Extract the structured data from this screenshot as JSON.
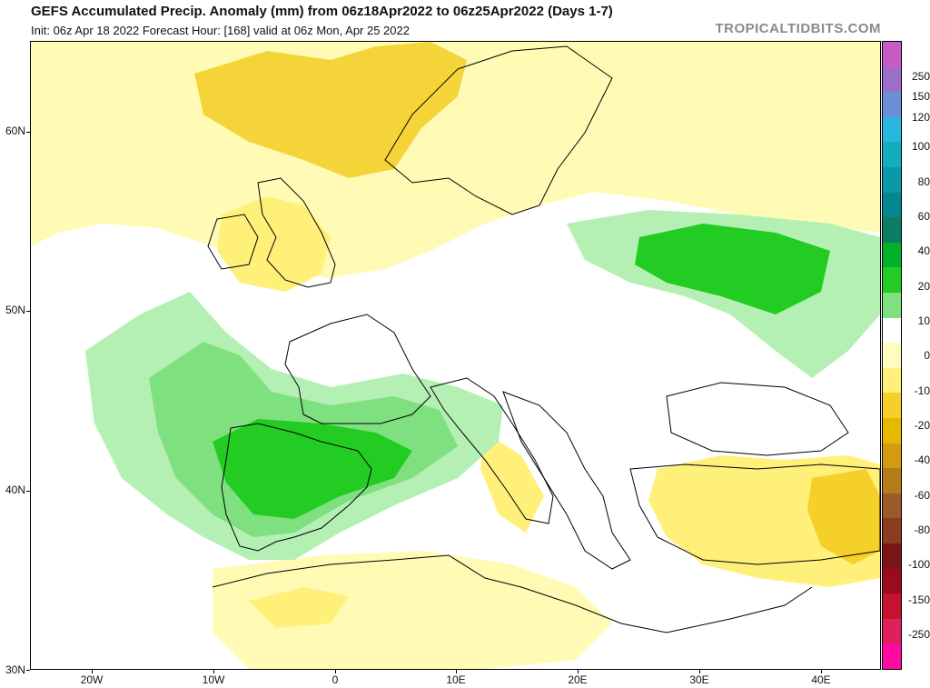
{
  "header": {
    "title": "GEFS Accumulated Precip. Anomaly (mm) from 06z18Apr2022 to 06z25Apr2022 (Days 1-7)",
    "subtitle": "Init: 06z Apr 18 2022   Forecast Hour: [168]   valid at 06z Mon, Apr 25 2022",
    "brand": "TROPICALTIDBITS.COM"
  },
  "map": {
    "lat_labels": [
      "60N",
      "50N",
      "40N",
      "30N"
    ],
    "lon_labels": [
      "20W",
      "10W",
      "0",
      "10E",
      "20E",
      "30E",
      "40E"
    ],
    "anomaly_regions": [
      {
        "area": "Iberian Peninsula and Bay of Biscay",
        "sign": "wet",
        "max_mm": 40
      },
      {
        "area": "Southern France and western Mediterranean",
        "sign": "wet",
        "max_mm": 40
      },
      {
        "area": "Belarus and northern Ukraine",
        "sign": "wet",
        "max_mm": 40
      },
      {
        "area": "Norway and northern North Atlantic",
        "sign": "dry",
        "max_mm": -20
      },
      {
        "area": "Turkey and eastern Mediterranean",
        "sign": "dry",
        "max_mm": -60
      },
      {
        "area": "North Africa",
        "sign": "dry",
        "max_mm": -20
      }
    ]
  },
  "colorbar": {
    "labels": [
      "250",
      "150",
      "120",
      "100",
      "80",
      "60",
      "40",
      "20",
      "10",
      "0",
      "-10",
      "-20",
      "-40",
      "-60",
      "-80",
      "-100",
      "-150",
      "-250"
    ],
    "colors": [
      "#c85cc4",
      "#9b6fc9",
      "#6a8fd6",
      "#26b8e0",
      "#13aebe",
      "#0b99a8",
      "#06868e",
      "#0c7c62",
      "#00b32a",
      "#22cc22",
      "#7ee07e",
      "#ffffff",
      "#fffcc0",
      "#fff07a",
      "#f5cf2a",
      "#e6b800",
      "#d49b10",
      "#b57c1c",
      "#9c5a2a",
      "#8a3d1f",
      "#7a1616",
      "#9c0a1e",
      "#c41230",
      "#e0205a",
      "#ff0aa0"
    ]
  }
}
